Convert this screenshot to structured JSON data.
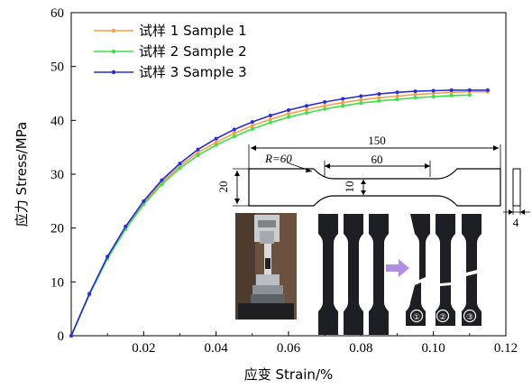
{
  "chart_data": {
    "type": "line",
    "xlabel": "应变 Strain/%",
    "ylabel": "应力 Stress/MPa",
    "xlim": [
      0,
      0.12
    ],
    "ylim": [
      0,
      60
    ],
    "x_ticks": [
      "0.02",
      "0.04",
      "0.06",
      "0.08",
      "0.10",
      "0.12"
    ],
    "y_ticks": [
      "0",
      "10",
      "20",
      "30",
      "40",
      "50",
      "60"
    ],
    "legend_position": "top-left",
    "grid": false,
    "series": [
      {
        "name": "试样 1 Sample 1",
        "color": "#f4a04a",
        "x": [
          0,
          0.005,
          0.01,
          0.015,
          0.02,
          0.025,
          0.03,
          0.035,
          0.04,
          0.045,
          0.05,
          0.055,
          0.06,
          0.065,
          0.07,
          0.075,
          0.08,
          0.085,
          0.09,
          0.095,
          0.1,
          0.105,
          0.11,
          0.115
        ],
        "values": [
          0,
          7.7,
          14.5,
          20.0,
          24.7,
          28.5,
          31.5,
          34.0,
          35.9,
          37.6,
          39.0,
          40.2,
          41.2,
          42.0,
          42.7,
          43.3,
          43.8,
          44.2,
          44.5,
          44.8,
          45.0,
          45.2,
          45.3,
          45.3
        ]
      },
      {
        "name": "试样 2 Sample 2",
        "color": "#3ee04a",
        "x": [
          0,
          0.005,
          0.01,
          0.015,
          0.02,
          0.025,
          0.03,
          0.035,
          0.04,
          0.045,
          0.05,
          0.055,
          0.06,
          0.065,
          0.07,
          0.075,
          0.08,
          0.085,
          0.09,
          0.095,
          0.1,
          0.105,
          0.11
        ],
        "values": [
          0,
          7.6,
          14.3,
          19.8,
          24.4,
          28.1,
          31.1,
          33.5,
          35.4,
          37.0,
          38.4,
          39.6,
          40.6,
          41.4,
          42.1,
          42.7,
          43.2,
          43.6,
          43.9,
          44.2,
          44.4,
          44.6,
          44.7
        ]
      },
      {
        "name": "试样 3 Sample 3",
        "color": "#2b2bd9",
        "x": [
          0,
          0.005,
          0.01,
          0.015,
          0.02,
          0.025,
          0.03,
          0.035,
          0.04,
          0.045,
          0.05,
          0.055,
          0.06,
          0.065,
          0.07,
          0.075,
          0.08,
          0.085,
          0.09,
          0.095,
          0.1,
          0.105,
          0.11,
          0.115
        ],
        "values": [
          0,
          7.8,
          14.7,
          20.3,
          25.0,
          28.9,
          32.0,
          34.6,
          36.6,
          38.3,
          39.7,
          40.9,
          41.9,
          42.7,
          43.4,
          44.0,
          44.5,
          44.9,
          45.2,
          45.4,
          45.5,
          45.6,
          45.6,
          45.6
        ]
      }
    ]
  },
  "inset": {
    "overall_length": "150",
    "radius_label": "R=60",
    "gauge_length": "60",
    "width_label": "20",
    "gauge_width": "10",
    "thickness": "4",
    "circle_labels": [
      "①",
      "②",
      "③"
    ]
  }
}
